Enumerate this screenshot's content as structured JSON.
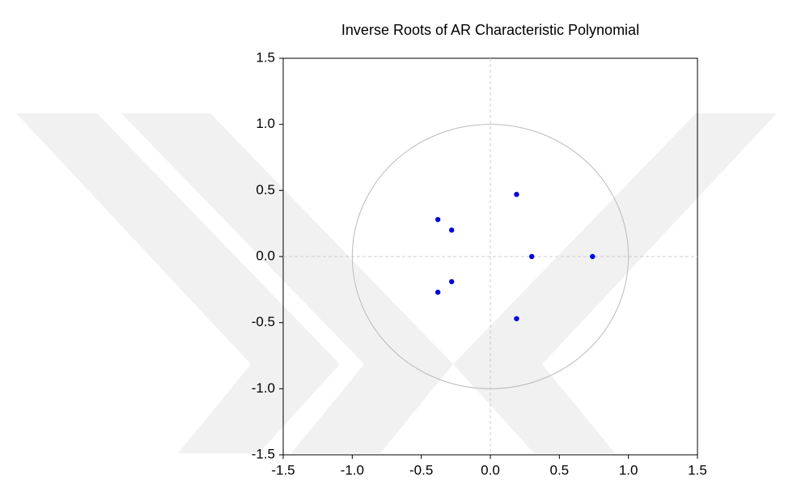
{
  "chart_data": {
    "type": "scatter",
    "title": "Inverse Roots of AR Characteristic Polynomial",
    "series": [
      {
        "color": "#0000dd",
        "x": [
          -0.38,
          -0.28,
          0.19,
          0.3,
          0.74,
          -0.28,
          -0.38,
          0.19
        ],
        "values": [
          0.28,
          0.2,
          0.47,
          0.0,
          0.0,
          -0.19,
          -0.27,
          -0.47
        ]
      }
    ],
    "xlim": [
      -1.5,
      1.5
    ],
    "xticks": [
      -1.5,
      {
        "value": -1.0,
        "label": "-1.0"
      },
      -0.5,
      {
        "value": 0,
        "label": "0.0"
      },
      0.5,
      {
        "value": 1.0,
        "label": "1.0"
      },
      1.5
    ],
    "ylim": [
      -1.5,
      1.5
    ],
    "yticks": [
      -1.5,
      {
        "value": -1.0,
        "label": "-1.0"
      },
      -0.5,
      {
        "value": 0,
        "label": "0.0"
      },
      0.5,
      {
        "value": 1.0,
        "label": "1.0"
      },
      1.5
    ]
  }
}
